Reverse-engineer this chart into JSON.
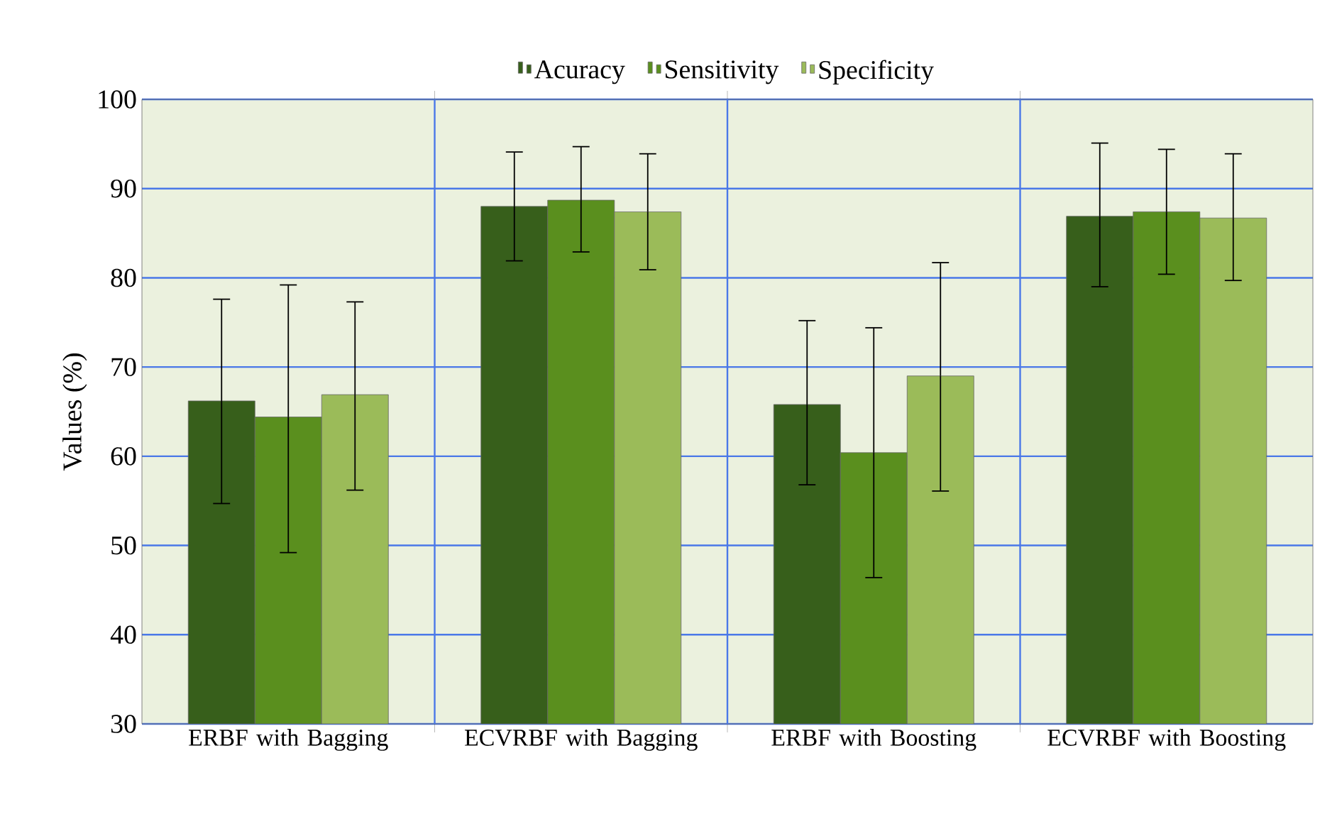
{
  "chart_data": {
    "type": "bar",
    "ylabel": "Values (%)",
    "categories": [
      "ERBF with Bagging",
      "ECVRBF with Bagging",
      "ERBF with Boosting",
      "ECVRBF with Boosting"
    ],
    "series": [
      {
        "name": "Acuracy",
        "color": "#375f1b",
        "values": [
          66.2,
          88.0,
          65.8,
          86.9
        ],
        "errors": [
          [
            54.7,
            77.6
          ],
          [
            81.9,
            94.1
          ],
          [
            56.8,
            75.2
          ],
          [
            79.0,
            95.1
          ]
        ]
      },
      {
        "name": "Sensitivity",
        "color": "#5a8f1e",
        "values": [
          64.4,
          88.7,
          60.4,
          87.4
        ],
        "errors": [
          [
            49.2,
            79.2
          ],
          [
            82.9,
            94.7
          ],
          [
            46.4,
            74.4
          ],
          [
            80.4,
            94.4
          ]
        ]
      },
      {
        "name": "Specificity",
        "color": "#9bbb59",
        "values": [
          66.9,
          87.4,
          69.0,
          86.7
        ],
        "errors": [
          [
            56.2,
            77.3
          ],
          [
            80.9,
            93.9
          ],
          [
            56.1,
            81.7
          ],
          [
            79.7,
            93.9
          ]
        ]
      }
    ],
    "ylim": [
      30,
      100
    ],
    "yticks": [
      30,
      40,
      50,
      60,
      70,
      80,
      90,
      100
    ],
    "grid": true,
    "legend": "top"
  }
}
